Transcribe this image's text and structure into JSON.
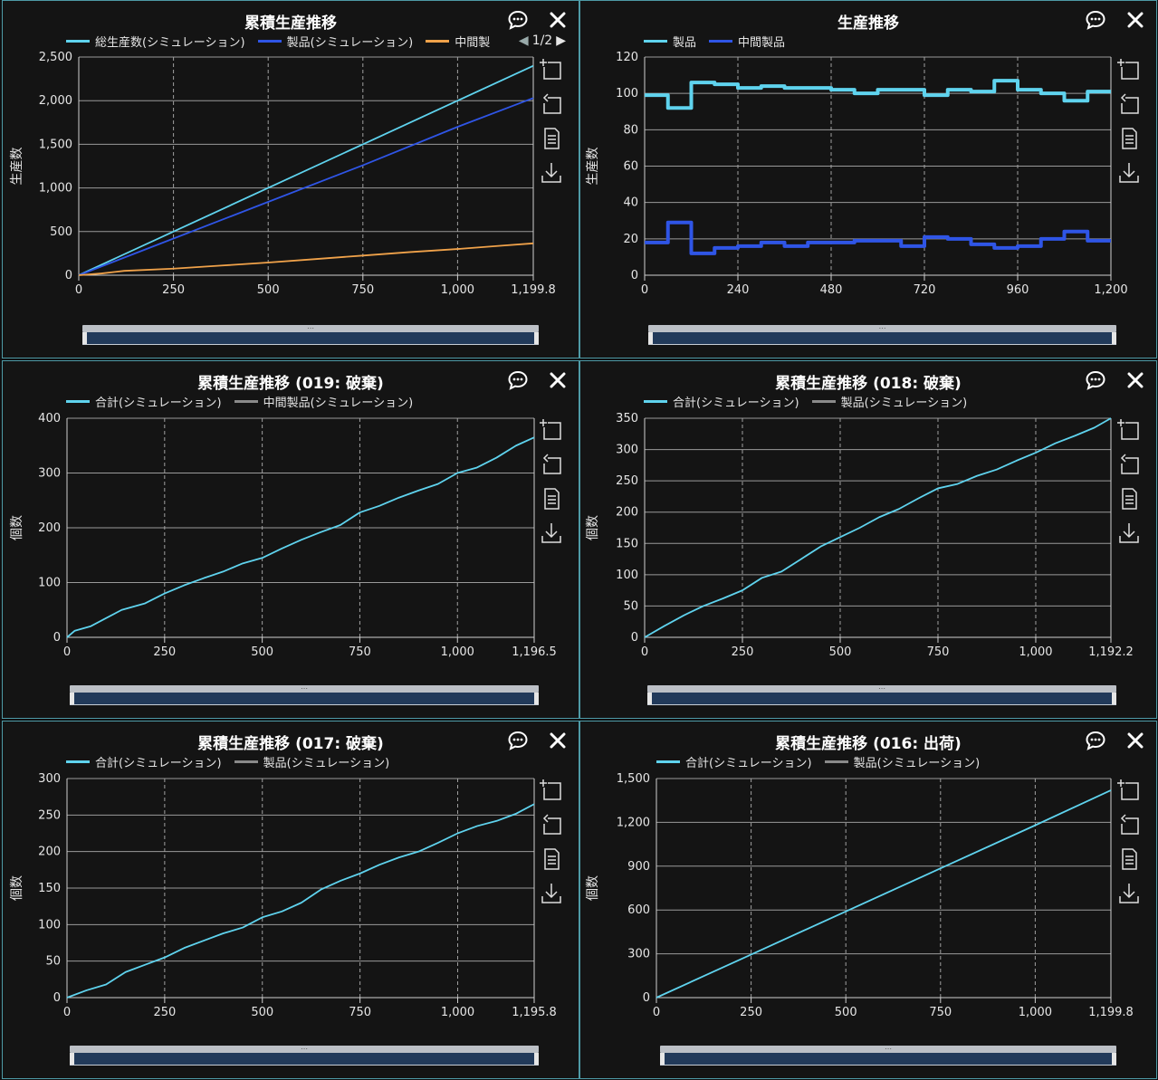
{
  "panels": [
    {
      "title": "累積生産推移",
      "pager": "1/2",
      "legend": [
        {
          "name": "総生産数(シミュレーション)",
          "color": "#5fd3ee"
        },
        {
          "name": "製品(シミュレーション)",
          "color": "#2f55e6"
        },
        {
          "name": "中間製",
          "color": "#f0a24a"
        }
      ],
      "ylabel": "生産数"
    },
    {
      "title": "生産推移",
      "legend": [
        {
          "name": "製品",
          "color": "#5fd3ee"
        },
        {
          "name": "中間製品",
          "color": "#2f55e6"
        }
      ],
      "ylabel": "生産数"
    },
    {
      "title": "累積生産推移 (019: 破棄)",
      "legend": [
        {
          "name": "合計(シミュレーション)",
          "color": "#5fd3ee"
        },
        {
          "name": "中間製品(シミュレーション)",
          "color": "#8a8a8a"
        }
      ],
      "ylabel": "個数"
    },
    {
      "title": "累積生産推移 (018: 破棄)",
      "legend": [
        {
          "name": "合計(シミュレーション)",
          "color": "#5fd3ee"
        },
        {
          "name": "製品(シミュレーション)",
          "color": "#8a8a8a"
        }
      ],
      "ylabel": "個数"
    },
    {
      "title": "累積生産推移 (017: 破棄)",
      "legend": [
        {
          "name": "合計(シミュレーション)",
          "color": "#5fd3ee"
        },
        {
          "name": "製品(シミュレーション)",
          "color": "#8a8a8a"
        }
      ],
      "ylabel": "個数"
    },
    {
      "title": "累積生産推移 (016: 出荷)",
      "legend": [
        {
          "name": "合計(シミュレーション)",
          "color": "#5fd3ee"
        },
        {
          "name": "製品(シミュレーション)",
          "color": "#8a8a8a"
        }
      ],
      "ylabel": "個数"
    }
  ],
  "chart_data": [
    {
      "type": "line",
      "title": "累積生産推移",
      "ylabel": "生産数",
      "xlim": [
        0,
        1199.8
      ],
      "ylim": [
        0,
        2500
      ],
      "xticks": [
        "0",
        "250",
        "500",
        "750",
        "1,000",
        "1,199.8"
      ],
      "xtick_values": [
        0,
        250,
        500,
        750,
        1000,
        1199.8
      ],
      "yticks": [
        "0",
        "500",
        "1,000",
        "1,500",
        "2,000",
        "2,500"
      ],
      "ytick_values": [
        0,
        500,
        1000,
        1500,
        2000,
        2500
      ],
      "grid": true,
      "series": [
        {
          "name": "総生産数(シミュレーション)",
          "color": "#5fd3ee",
          "x": [
            0,
            250,
            500,
            750,
            1000,
            1199.8
          ],
          "y": [
            0,
            500,
            1000,
            1500,
            2000,
            2400
          ]
        },
        {
          "name": "製品(シミュレーション)",
          "color": "#2f55e6",
          "x": [
            0,
            250,
            500,
            750,
            1000,
            1199.8
          ],
          "y": [
            0,
            420,
            840,
            1260,
            1700,
            2030
          ]
        },
        {
          "name": "中間製",
          "color": "#f0a24a",
          "x": [
            0,
            60,
            120,
            250,
            375,
            500,
            625,
            750,
            875,
            1000,
            1120,
            1199.8
          ],
          "y": [
            0,
            20,
            50,
            75,
            110,
            145,
            185,
            225,
            265,
            300,
            340,
            365
          ]
        }
      ]
    },
    {
      "type": "line",
      "title": "生産推移",
      "ylabel": "生産数",
      "xlim": [
        0,
        1200
      ],
      "ylim": [
        0,
        120
      ],
      "xticks": [
        "0",
        "240",
        "480",
        "720",
        "960",
        "1,200"
      ],
      "xtick_values": [
        0,
        240,
        480,
        720,
        960,
        1200
      ],
      "yticks": [
        "0",
        "20",
        "40",
        "60",
        "80",
        "100",
        "120"
      ],
      "ytick_values": [
        0,
        20,
        40,
        60,
        80,
        100,
        120
      ],
      "grid": true,
      "step": true,
      "series": [
        {
          "name": "製品",
          "color": "#5fd3ee",
          "x": [
            0,
            60,
            120,
            180,
            240,
            300,
            360,
            420,
            480,
            540,
            600,
            660,
            720,
            780,
            840,
            900,
            960,
            1020,
            1080,
            1140,
            1200
          ],
          "y": [
            99,
            92,
            106,
            105,
            103,
            104,
            103,
            103,
            102,
            100,
            102,
            102,
            99,
            102,
            101,
            107,
            102,
            100,
            96,
            101,
            101
          ]
        },
        {
          "name": "中間製品",
          "color": "#2f55e6",
          "x": [
            0,
            60,
            120,
            180,
            240,
            300,
            360,
            420,
            480,
            540,
            600,
            660,
            720,
            780,
            840,
            900,
            960,
            1020,
            1080,
            1140,
            1200
          ],
          "y": [
            18,
            29,
            12,
            15,
            16,
            18,
            16,
            18,
            18,
            19,
            19,
            16,
            21,
            20,
            17,
            15,
            16,
            20,
            24,
            19,
            19
          ]
        }
      ]
    },
    {
      "type": "line",
      "title": "累積生産推移 (019: 破棄)",
      "ylabel": "個数",
      "xlim": [
        0,
        1196.5
      ],
      "ylim": [
        0,
        400
      ],
      "xticks": [
        "0",
        "250",
        "500",
        "750",
        "1,000",
        "1,196.5"
      ],
      "xtick_values": [
        0,
        250,
        500,
        750,
        1000,
        1196.5
      ],
      "yticks": [
        "0",
        "100",
        "200",
        "300",
        "400"
      ],
      "ytick_values": [
        0,
        100,
        200,
        300,
        400
      ],
      "grid": true,
      "series": [
        {
          "name": "合計(シミュレーション)",
          "color": "#5fd3ee",
          "x": [
            0,
            20,
            60,
            100,
            140,
            200,
            250,
            300,
            350,
            400,
            450,
            500,
            550,
            600,
            650,
            700,
            750,
            800,
            850,
            900,
            950,
            1000,
            1050,
            1100,
            1150,
            1196.5
          ],
          "y": [
            0,
            12,
            20,
            35,
            50,
            62,
            80,
            95,
            108,
            120,
            135,
            145,
            162,
            178,
            192,
            205,
            228,
            240,
            255,
            268,
            280,
            300,
            310,
            328,
            350,
            365
          ]
        }
      ]
    },
    {
      "type": "line",
      "title": "累積生産推移 (018: 破棄)",
      "ylabel": "個数",
      "xlim": [
        0,
        1192.2
      ],
      "ylim": [
        0,
        350
      ],
      "xticks": [
        "0",
        "250",
        "500",
        "750",
        "1,000",
        "1,192.2"
      ],
      "xtick_values": [
        0,
        250,
        500,
        750,
        1000,
        1192.2
      ],
      "yticks": [
        "0",
        "50",
        "100",
        "150",
        "200",
        "250",
        "300",
        "350"
      ],
      "ytick_values": [
        0,
        50,
        100,
        150,
        200,
        250,
        300,
        350
      ],
      "grid": true,
      "series": [
        {
          "name": "合計(シミュレーション)",
          "color": "#5fd3ee",
          "x": [
            0,
            50,
            100,
            150,
            200,
            250,
            300,
            350,
            400,
            450,
            500,
            550,
            600,
            650,
            700,
            750,
            800,
            850,
            900,
            950,
            1000,
            1050,
            1100,
            1150,
            1192.2
          ],
          "y": [
            0,
            18,
            35,
            50,
            62,
            75,
            95,
            105,
            125,
            145,
            160,
            175,
            192,
            205,
            222,
            238,
            245,
            258,
            268,
            282,
            295,
            310,
            322,
            335,
            350
          ]
        }
      ]
    },
    {
      "type": "line",
      "title": "累積生産推移 (017: 破棄)",
      "ylabel": "個数",
      "xlim": [
        0,
        1195.8
      ],
      "ylim": [
        0,
        300
      ],
      "xticks": [
        "0",
        "250",
        "500",
        "750",
        "1,000",
        "1,195.8"
      ],
      "xtick_values": [
        0,
        250,
        500,
        750,
        1000,
        1195.8
      ],
      "yticks": [
        "0",
        "50",
        "100",
        "150",
        "200",
        "250",
        "300"
      ],
      "ytick_values": [
        0,
        50,
        100,
        150,
        200,
        250,
        300
      ],
      "grid": true,
      "series": [
        {
          "name": "合計(シミュレーション)",
          "color": "#5fd3ee",
          "x": [
            0,
            50,
            100,
            150,
            200,
            250,
            300,
            350,
            400,
            450,
            500,
            550,
            600,
            650,
            700,
            750,
            800,
            850,
            900,
            950,
            1000,
            1050,
            1100,
            1150,
            1195.8
          ],
          "y": [
            0,
            10,
            18,
            35,
            45,
            55,
            68,
            78,
            88,
            96,
            110,
            118,
            130,
            148,
            160,
            170,
            182,
            192,
            200,
            212,
            225,
            235,
            242,
            252,
            265
          ]
        }
      ]
    },
    {
      "type": "line",
      "title": "累積生産推移 (016: 出荷)",
      "ylabel": "個数",
      "xlim": [
        0,
        1199.8
      ],
      "ylim": [
        0,
        1500
      ],
      "xticks": [
        "0",
        "250",
        "500",
        "750",
        "1,000",
        "1,199.8"
      ],
      "xtick_values": [
        0,
        250,
        500,
        750,
        1000,
        1199.8
      ],
      "yticks": [
        "0",
        "300",
        "600",
        "900",
        "1,200",
        "1,500"
      ],
      "ytick_values": [
        0,
        300,
        600,
        900,
        1200,
        1500
      ],
      "grid": true,
      "series": [
        {
          "name": "合計(シミュレーション)",
          "color": "#5fd3ee",
          "x": [
            0,
            250,
            500,
            750,
            1000,
            1199.8
          ],
          "y": [
            0,
            295,
            590,
            885,
            1180,
            1420
          ]
        }
      ]
    }
  ]
}
